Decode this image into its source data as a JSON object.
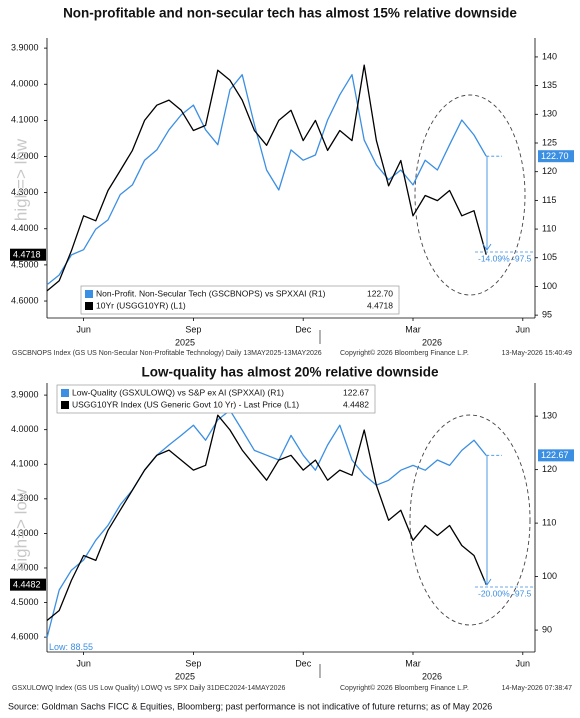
{
  "chart_data": [
    {
      "type": "line",
      "title": "Non-profitable and non-secular tech has almost 15% relative downside",
      "categories": [
        null,
        null,
        null,
        "Jun",
        null,
        null,
        null,
        null,
        null,
        null,
        null,
        null,
        "Sep",
        null,
        null,
        null,
        null,
        null,
        null,
        null,
        null,
        "Dec",
        null,
        null,
        null,
        null,
        null,
        null,
        null,
        null,
        "Mar",
        null,
        null,
        null,
        null,
        null,
        null,
        null,
        null,
        "Jun",
        null
      ],
      "x_groups": [
        "2025",
        "2026"
      ],
      "series": [
        {
          "name": "Non-Profit. Non-Secular Tech (GSCBNOPS) vs SPXXAI (R1)",
          "color": "#3b8fe3",
          "axis": "y2",
          "values": [
            100.3,
            102,
            105.5,
            106.4,
            110,
            111.6,
            116,
            117.7,
            122,
            123.8,
            127.3,
            129.9,
            131.6,
            127.3,
            124.7,
            134.3,
            136.9,
            128.2,
            120.3,
            116.8,
            123.8,
            122,
            122.9,
            129,
            133.4,
            136.9,
            125.5,
            121.2,
            118.6,
            120.3,
            117.7,
            122,
            120.3,
            124.7,
            129,
            126.4,
            122.7,
            null,
            null,
            null,
            null
          ],
          "value_labels": [
            null,
            null,
            null,
            null,
            null,
            null,
            null,
            null,
            null,
            null,
            null,
            null,
            null,
            null,
            null,
            null,
            null,
            null,
            null,
            null,
            null,
            null,
            null,
            null,
            null,
            null,
            null,
            null,
            null,
            null,
            null,
            null,
            null,
            null,
            null,
            null,
            "122.70",
            null,
            null,
            null,
            null
          ]
        },
        {
          "name": "10Yr (USGG10YR) (L1)",
          "color": "#000000",
          "axis": "y",
          "values": [
            4.572,
            4.544,
            4.461,
            4.364,
            4.378,
            4.294,
            4.239,
            4.183,
            4.1,
            4.058,
            4.044,
            4.072,
            4.128,
            4.114,
            3.961,
            3.989,
            4.044,
            4.128,
            4.169,
            4.1,
            4.072,
            4.156,
            4.1,
            4.183,
            4.128,
            4.156,
            3.947,
            4.156,
            4.281,
            4.211,
            4.364,
            4.308,
            4.322,
            4.294,
            4.364,
            4.35,
            4.4718,
            null,
            null,
            null,
            null
          ]
        }
      ],
      "ylim": [
        3.872,
        4.647
      ],
      "y_inverted": true,
      "yticks": [
        {
          "value": 3.9,
          "label": "3.9000"
        },
        {
          "value": 4.0,
          "label": "4.0000"
        },
        {
          "value": 4.1,
          "label": "4.1000"
        },
        {
          "value": 4.2,
          "label": "4.2000"
        },
        {
          "value": 4.3,
          "label": "4.3000"
        },
        {
          "value": 4.4,
          "label": "4.4000"
        },
        {
          "value": 4.5,
          "label": "4.5000"
        },
        {
          "value": 4.6,
          "label": "4.6000"
        }
      ],
      "y2lim": [
        94.5,
        143.3
      ],
      "y2ticks": [
        95,
        100,
        105,
        110,
        115,
        120,
        125,
        130,
        135,
        140
      ],
      "grid": false,
      "legend": "lower left",
      "left_axis_note": "high=> low",
      "annotation": "-14.09%  -97.5",
      "footer_left": "GSCBNOPS Index (GS US Non-Secular Non-Profitable Technology) Daily 13MAY2025-13MAY2026",
      "footer_mid": "Copyright© 2026 Bloomberg Finance L.P.",
      "footer_right": "13-May-2026 15:40:49"
    },
    {
      "type": "line",
      "title": "Low-quality has almost 20% relative downside",
      "categories": [
        null,
        null,
        null,
        "Jun",
        null,
        null,
        null,
        null,
        null,
        null,
        null,
        null,
        "Sep",
        null,
        null,
        null,
        null,
        null,
        null,
        null,
        null,
        "Dec",
        null,
        null,
        null,
        null,
        null,
        null,
        null,
        null,
        "Mar",
        null,
        null,
        null,
        null,
        null,
        null,
        null,
        null,
        "Jun",
        null
      ],
      "x_groups": [
        "2025",
        "2026"
      ],
      "series": [
        {
          "name": "Low-Quality (GSXULOWQ) vs S&P ex AI (SPXXAI) (R1)",
          "color": "#3b8fe3",
          "axis": "y2",
          "values": [
            88.55,
            97.5,
            101.2,
            103.1,
            106.8,
            109.6,
            113.4,
            116.2,
            119.9,
            122.7,
            124.6,
            126.4,
            128.3,
            125.5,
            129.3,
            131.1,
            127.4,
            123.6,
            122.7,
            121.8,
            126.4,
            122.7,
            119.9,
            124.6,
            128.3,
            121.8,
            119,
            117.1,
            118,
            119.9,
            120.8,
            119.9,
            121.8,
            120.8,
            123.6,
            125.5,
            122.67,
            null,
            null,
            null,
            null
          ],
          "value_labels": [
            "Low: 88.55",
            null,
            null,
            null,
            null,
            null,
            null,
            null,
            null,
            null,
            null,
            null,
            null,
            null,
            null,
            null,
            null,
            null,
            null,
            null,
            null,
            null,
            null,
            null,
            null,
            null,
            null,
            null,
            null,
            null,
            null,
            null,
            null,
            null,
            null,
            null,
            null,
            null,
            null,
            null,
            null
          ]
        },
        {
          "name": "USGG10YR Index (US Generic Govt 10 Yr) - Last Price (L1)",
          "color": "#000000",
          "axis": "y",
          "values": [
            4.552,
            4.523,
            4.436,
            4.364,
            4.378,
            4.291,
            4.233,
            4.175,
            4.117,
            4.074,
            4.059,
            4.088,
            4.117,
            4.103,
            3.958,
            4.001,
            4.059,
            4.103,
            4.146,
            4.088,
            4.074,
            4.117,
            4.088,
            4.146,
            4.117,
            4.132,
            4.001,
            4.161,
            4.262,
            4.233,
            4.32,
            4.277,
            4.306,
            4.277,
            4.335,
            4.364,
            4.4482,
            null,
            null,
            null,
            null
          ]
        }
      ],
      "ylim": [
        3.865,
        4.643
      ],
      "y_inverted": true,
      "yticks": [
        {
          "value": 3.9,
          "label": "3.9000"
        },
        {
          "value": 4.0,
          "label": "4.0000"
        },
        {
          "value": 4.1,
          "label": "4.1000"
        },
        {
          "value": 4.2,
          "label": "4.2000"
        },
        {
          "value": 4.3,
          "label": "4.3000"
        },
        {
          "value": 4.4,
          "label": "4.4000"
        },
        {
          "value": 4.5,
          "label": "4.5000"
        },
        {
          "value": 4.6,
          "label": "4.6000"
        }
      ],
      "y2lim": [
        85.9,
        136.2
      ],
      "y2ticks": [
        90,
        100,
        110,
        120,
        130
      ],
      "grid": false,
      "legend": "upper left",
      "left_axis_note": "high=> low",
      "annotation": "-20.00%  -97.5",
      "footer_left": "GSXULOWQ Index (GS US Low Quality) LOWQ vs SPX Daily 31DEC2024-14MAY2026",
      "footer_mid": "Copyright© 2026 Bloomberg Finance L.P.",
      "footer_right": "14-May-2026 07:38:47"
    }
  ],
  "source": "Source: Goldman Sachs FICC & Equities, Bloomberg; past performance is not indicative of future returns; as of May 2026"
}
